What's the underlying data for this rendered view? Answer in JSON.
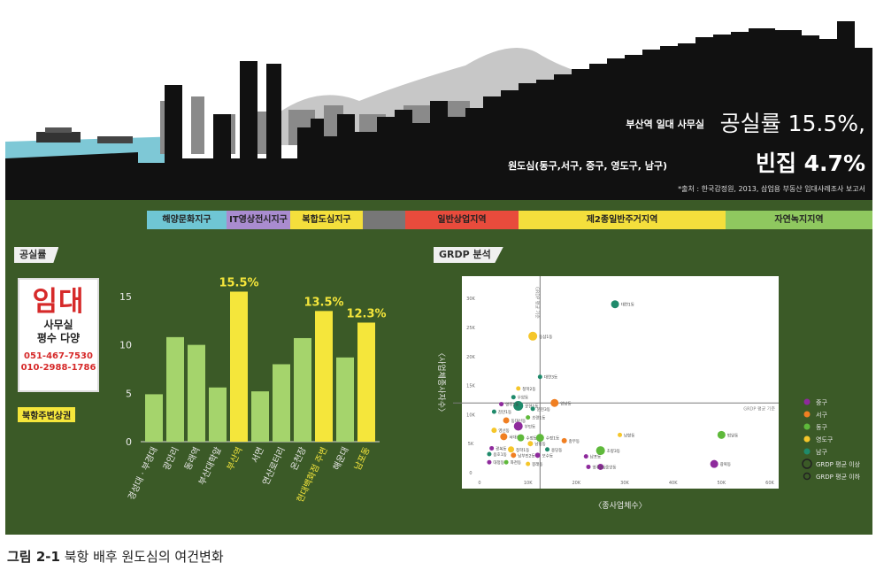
{
  "headline": {
    "line1_small": "부산역 일대 사무실",
    "line1_big": "공실률 15.5%,",
    "line2_small": "원도심(동구,서구, 중구, 영도구, 남구)",
    "line2_big": "빈집 4.7%",
    "source": "*출처 : 한국감정원, 2013, 삼업용 부동산 임대사례조사 보고서"
  },
  "zones": [
    {
      "label": "해양문화지구",
      "color": "#6fc6d4",
      "weight": 90
    },
    {
      "label": "IT영상전시지구",
      "color": "#a98ccf",
      "weight": 72
    },
    {
      "label": "복합도심지구",
      "color": "#f4df3c",
      "weight": 82
    },
    {
      "label": "",
      "color": "#777777",
      "weight": 48
    },
    {
      "label": "일반상업지역",
      "color": "#e84b3c",
      "weight": 128
    },
    {
      "label": "제2종일반주거지역",
      "color": "#f4df3c",
      "weight": 234
    },
    {
      "label": "자연녹지지역",
      "color": "#8fc85f",
      "weight": 166
    }
  ],
  "vacancy_section": {
    "tag": "공실률",
    "sign_big": "임대",
    "sign_line1": "사무실",
    "sign_line2": "평수 다양",
    "sign_phone1": "051-467-7530",
    "sign_phone2": "010-2988-1786",
    "district_tag": "북항주변상권"
  },
  "grdp_section": {
    "tag": "GRDP 분석"
  },
  "colors": {
    "bar_default": "#a5d46c",
    "bar_highlight": "#f5e63b",
    "jung": "#8e2a9c",
    "seo": "#f07f22",
    "dong": "#5fb93b",
    "yeongdo": "#f5c62a",
    "nam": "#1f8a6b"
  },
  "chart_data": [
    {
      "type": "bar",
      "categories": [
        "경성대 · 부경대",
        "광안리",
        "동래역",
        "부산대학앞",
        "부산역",
        "서면",
        "연산로터리",
        "온천장",
        "현대백화점 주변",
        "해운대",
        "남포동"
      ],
      "values": [
        4.9,
        10.8,
        10.0,
        5.6,
        15.5,
        5.2,
        8.0,
        10.7,
        13.5,
        8.7,
        12.3
      ],
      "highlight": [
        false,
        false,
        false,
        false,
        true,
        false,
        false,
        false,
        true,
        false,
        true
      ],
      "data_labels": [
        "",
        "",
        "",
        "",
        "15.5%",
        "",
        "",
        "",
        "13.5%",
        "",
        "12.3%"
      ],
      "yticks": [
        0,
        5,
        10,
        15
      ],
      "ylim": [
        0,
        16
      ]
    },
    {
      "type": "scatter",
      "xlabel": "〈종사업체수〉",
      "ylabel": "〈사업체종사자수〉",
      "xticks": [
        "0",
        "10K",
        "20K",
        "30K",
        "40K",
        "50K",
        "60K"
      ],
      "yticks": [
        "0",
        "5K",
        "10K",
        "15K",
        "20K",
        "25K",
        "30K"
      ],
      "x_ref_label": "GRDP 평균 기준",
      "y_ref_label": "GRDP 평균 기준",
      "legend": [
        {
          "label": "중구",
          "color": "#8e2a9c",
          "hollow": false
        },
        {
          "label": "서구",
          "color": "#f07f22",
          "hollow": false
        },
        {
          "label": "동구",
          "color": "#5fb93b",
          "hollow": false
        },
        {
          "label": "영도구",
          "color": "#f5c62a",
          "hollow": false
        },
        {
          "label": "남구",
          "color": "#1f8a6b",
          "hollow": false
        },
        {
          "label": "GRDP 평균 이상",
          "color": "#222222",
          "hollow": true,
          "big": true
        },
        {
          "label": "GRDP 평균 이하",
          "color": "#222222",
          "hollow": true,
          "big": false
        }
      ],
      "points": [
        {
          "x": 28,
          "y": 29,
          "size": 7,
          "color": "#1f8a6b",
          "label": "대연1동"
        },
        {
          "x": 11,
          "y": 23.5,
          "size": 8,
          "color": "#f5c62a",
          "label": "동삼1동"
        },
        {
          "x": 12.5,
          "y": 16.5,
          "size": 3,
          "color": "#1f8a6b",
          "label": "대연3동"
        },
        {
          "x": 8,
          "y": 14.5,
          "size": 3,
          "color": "#f5c62a",
          "label": "청학2동"
        },
        {
          "x": 15.5,
          "y": 12,
          "size": 7,
          "color": "#f07f22",
          "label": "암남동"
        },
        {
          "x": 7,
          "y": 13,
          "size": 3,
          "color": "#1f8a6b",
          "label": "우암동"
        },
        {
          "x": 8,
          "y": 11.5,
          "size": 9,
          "color": "#1f8a6b",
          "label": "문현1동"
        },
        {
          "x": 4.5,
          "y": 11.8,
          "size": 3,
          "color": "#8e2a9c",
          "label": "영주1동"
        },
        {
          "x": 3,
          "y": 10.5,
          "size": 3,
          "color": "#1f8a6b",
          "label": "감만1동"
        },
        {
          "x": 11,
          "y": 11,
          "size": 3,
          "color": "#1f8a6b",
          "label": "문현3동"
        },
        {
          "x": 10,
          "y": 9.5,
          "size": 3,
          "color": "#5fb93b",
          "label": "초량1동"
        },
        {
          "x": 5.5,
          "y": 9,
          "size": 5,
          "color": "#f07f22",
          "label": "동대신동"
        },
        {
          "x": 8,
          "y": 8,
          "size": 8,
          "color": "#8e2a9c",
          "label": "부민동"
        },
        {
          "x": 3,
          "y": 7.3,
          "size": 4,
          "color": "#f5c62a",
          "label": "영선동"
        },
        {
          "x": 5,
          "y": 6.2,
          "size": 6,
          "color": "#f07f22",
          "label": "서대신동"
        },
        {
          "x": 8.5,
          "y": 6,
          "size": 6,
          "color": "#5fb93b",
          "label": "수정동"
        },
        {
          "x": 12.5,
          "y": 6,
          "size": 7,
          "color": "#5fb93b",
          "label": "수정1동"
        },
        {
          "x": 17.5,
          "y": 5.5,
          "size": 4,
          "color": "#f07f22",
          "label": "충무동"
        },
        {
          "x": 10.5,
          "y": 5,
          "size": 4,
          "color": "#f5c62a",
          "label": "남항동"
        },
        {
          "x": 2.5,
          "y": 4.2,
          "size": 3,
          "color": "#8e2a9c",
          "label": "광복동"
        },
        {
          "x": 6.5,
          "y": 4,
          "size": 5,
          "color": "#f5c62a",
          "label": "청학1동"
        },
        {
          "x": 2,
          "y": 3.2,
          "size": 3,
          "color": "#1f8a6b",
          "label": "용호1동"
        },
        {
          "x": 7,
          "y": 3,
          "size": 4,
          "color": "#f07f22",
          "label": "남부민2동"
        },
        {
          "x": 12,
          "y": 3,
          "size": 4,
          "color": "#8e2a9c",
          "label": "보수동"
        },
        {
          "x": 2,
          "y": 1.8,
          "size": 3,
          "color": "#8e2a9c",
          "label": "대청동"
        },
        {
          "x": 5.5,
          "y": 1.8,
          "size": 3,
          "color": "#5fb93b",
          "label": "좌천동"
        },
        {
          "x": 10,
          "y": 1.5,
          "size": 3,
          "color": "#f5c62a",
          "label": "봉래동"
        },
        {
          "x": 14,
          "y": 4,
          "size": 3,
          "color": "#1f8a6b",
          "label": "용당동"
        },
        {
          "x": 29,
          "y": 6.5,
          "size": 3,
          "color": "#f5c62a",
          "label": "남항동"
        },
        {
          "x": 25,
          "y": 3.8,
          "size": 8,
          "color": "#5fb93b",
          "label": "초량3동"
        },
        {
          "x": 22,
          "y": 2.8,
          "size": 3,
          "color": "#8e2a9c",
          "label": "남포동"
        },
        {
          "x": 25,
          "y": 1,
          "size": 5,
          "color": "#8e2a9c",
          "label": "중앙동"
        },
        {
          "x": 22.5,
          "y": 1,
          "size": 3,
          "color": "#8e2a9c",
          "label": "영주2동"
        },
        {
          "x": 50,
          "y": 6.5,
          "size": 7,
          "color": "#5fb93b",
          "label": "범일동"
        },
        {
          "x": 48.5,
          "y": 1.5,
          "size": 7,
          "color": "#8e2a9c",
          "label": "광복동"
        }
      ]
    }
  ],
  "caption": {
    "number": "그림 2-1",
    "text": "북항 배후 원도심의 여건변화"
  }
}
